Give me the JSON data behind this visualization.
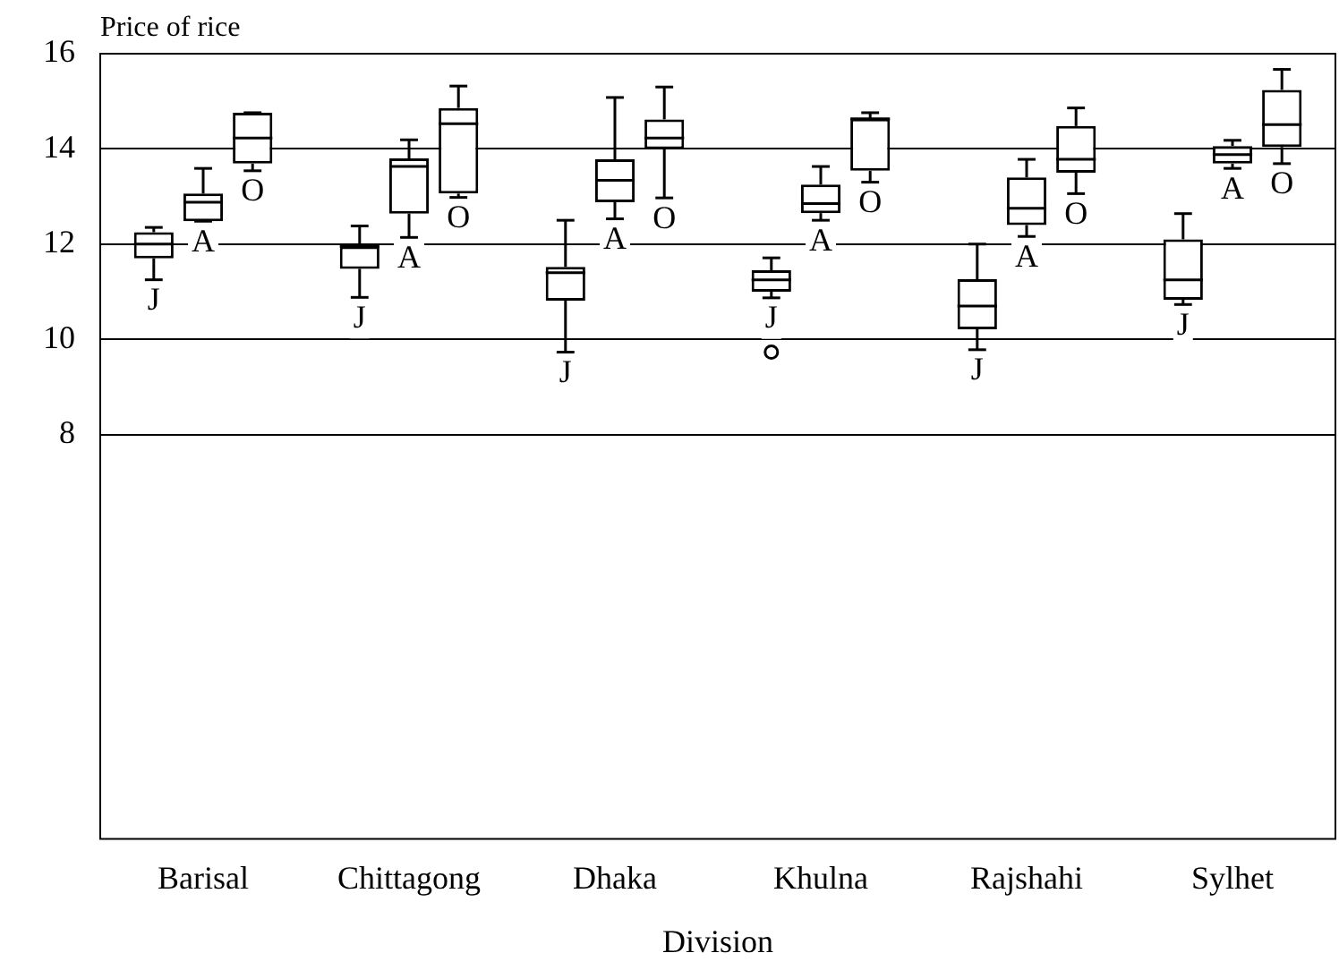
{
  "chart_data": {
    "type": "box",
    "ylabel": "Price of rice",
    "xlabel": "Division",
    "categories": [
      "Barisal",
      "Chittagong",
      "Dhaka",
      "Khulna",
      "Rajshahi",
      "Sylhet"
    ],
    "ylim": [
      -0.5,
      16
    ],
    "yticks": [
      8,
      10,
      12,
      14,
      16
    ],
    "grid": "y",
    "legend": false,
    "series": [
      {
        "name": "J",
        "color": "#000000",
        "boxes": [
          {
            "low": 11.25,
            "q1": 11.7,
            "median": 12.0,
            "q3": 12.25,
            "high": 12.35
          },
          {
            "low": 10.88,
            "q1": 11.48,
            "median": 11.95,
            "q3": 11.95,
            "high": 12.38
          },
          {
            "low": 9.73,
            "q1": 10.81,
            "median": 11.4,
            "q3": 11.52,
            "high": 12.5
          },
          {
            "low": 10.87,
            "q1": 11.0,
            "median": 11.25,
            "q3": 11.45,
            "high": 11.71,
            "outliers": [
              9.73
            ]
          },
          {
            "low": 9.78,
            "q1": 10.21,
            "median": 10.7,
            "q3": 11.26,
            "high": 12.0
          },
          {
            "low": 10.73,
            "q1": 10.83,
            "median": 11.25,
            "q3": 12.1,
            "high": 12.64
          }
        ]
      },
      {
        "name": "A",
        "color": "#000000",
        "boxes": [
          {
            "low": 12.48,
            "q1": 12.48,
            "median": 12.88,
            "q3": 13.06,
            "high": 13.59
          },
          {
            "low": 12.14,
            "q1": 12.64,
            "median": 13.63,
            "q3": 13.8,
            "high": 14.19
          },
          {
            "low": 12.53,
            "q1": 12.88,
            "median": 13.34,
            "q3": 13.78,
            "high": 15.08
          },
          {
            "low": 12.5,
            "q1": 12.65,
            "median": 12.85,
            "q3": 13.25,
            "high": 13.63
          },
          {
            "low": 12.16,
            "q1": 12.4,
            "median": 12.75,
            "q3": 13.4,
            "high": 13.78
          },
          {
            "low": 13.59,
            "q1": 13.69,
            "median": 13.88,
            "q3": 14.06,
            "high": 14.18
          }
        ]
      },
      {
        "name": "O",
        "color": "#000000",
        "boxes": [
          {
            "low": 13.54,
            "q1": 13.69,
            "median": 14.23,
            "q3": 14.76,
            "high": 14.76
          },
          {
            "low": 12.98,
            "q1": 13.06,
            "median": 14.53,
            "q3": 14.86,
            "high": 15.32
          },
          {
            "low": 12.97,
            "q1": 14.0,
            "median": 14.23,
            "q3": 14.62,
            "high": 15.3
          },
          {
            "low": 13.3,
            "q1": 13.54,
            "median": 14.63,
            "q3": 14.63,
            "high": 14.76
          },
          {
            "low": 13.06,
            "q1": 13.5,
            "median": 13.78,
            "q3": 14.48,
            "high": 14.86
          },
          {
            "low": 13.69,
            "q1": 14.04,
            "median": 14.51,
            "q3": 15.24,
            "high": 15.67
          }
        ]
      }
    ]
  }
}
